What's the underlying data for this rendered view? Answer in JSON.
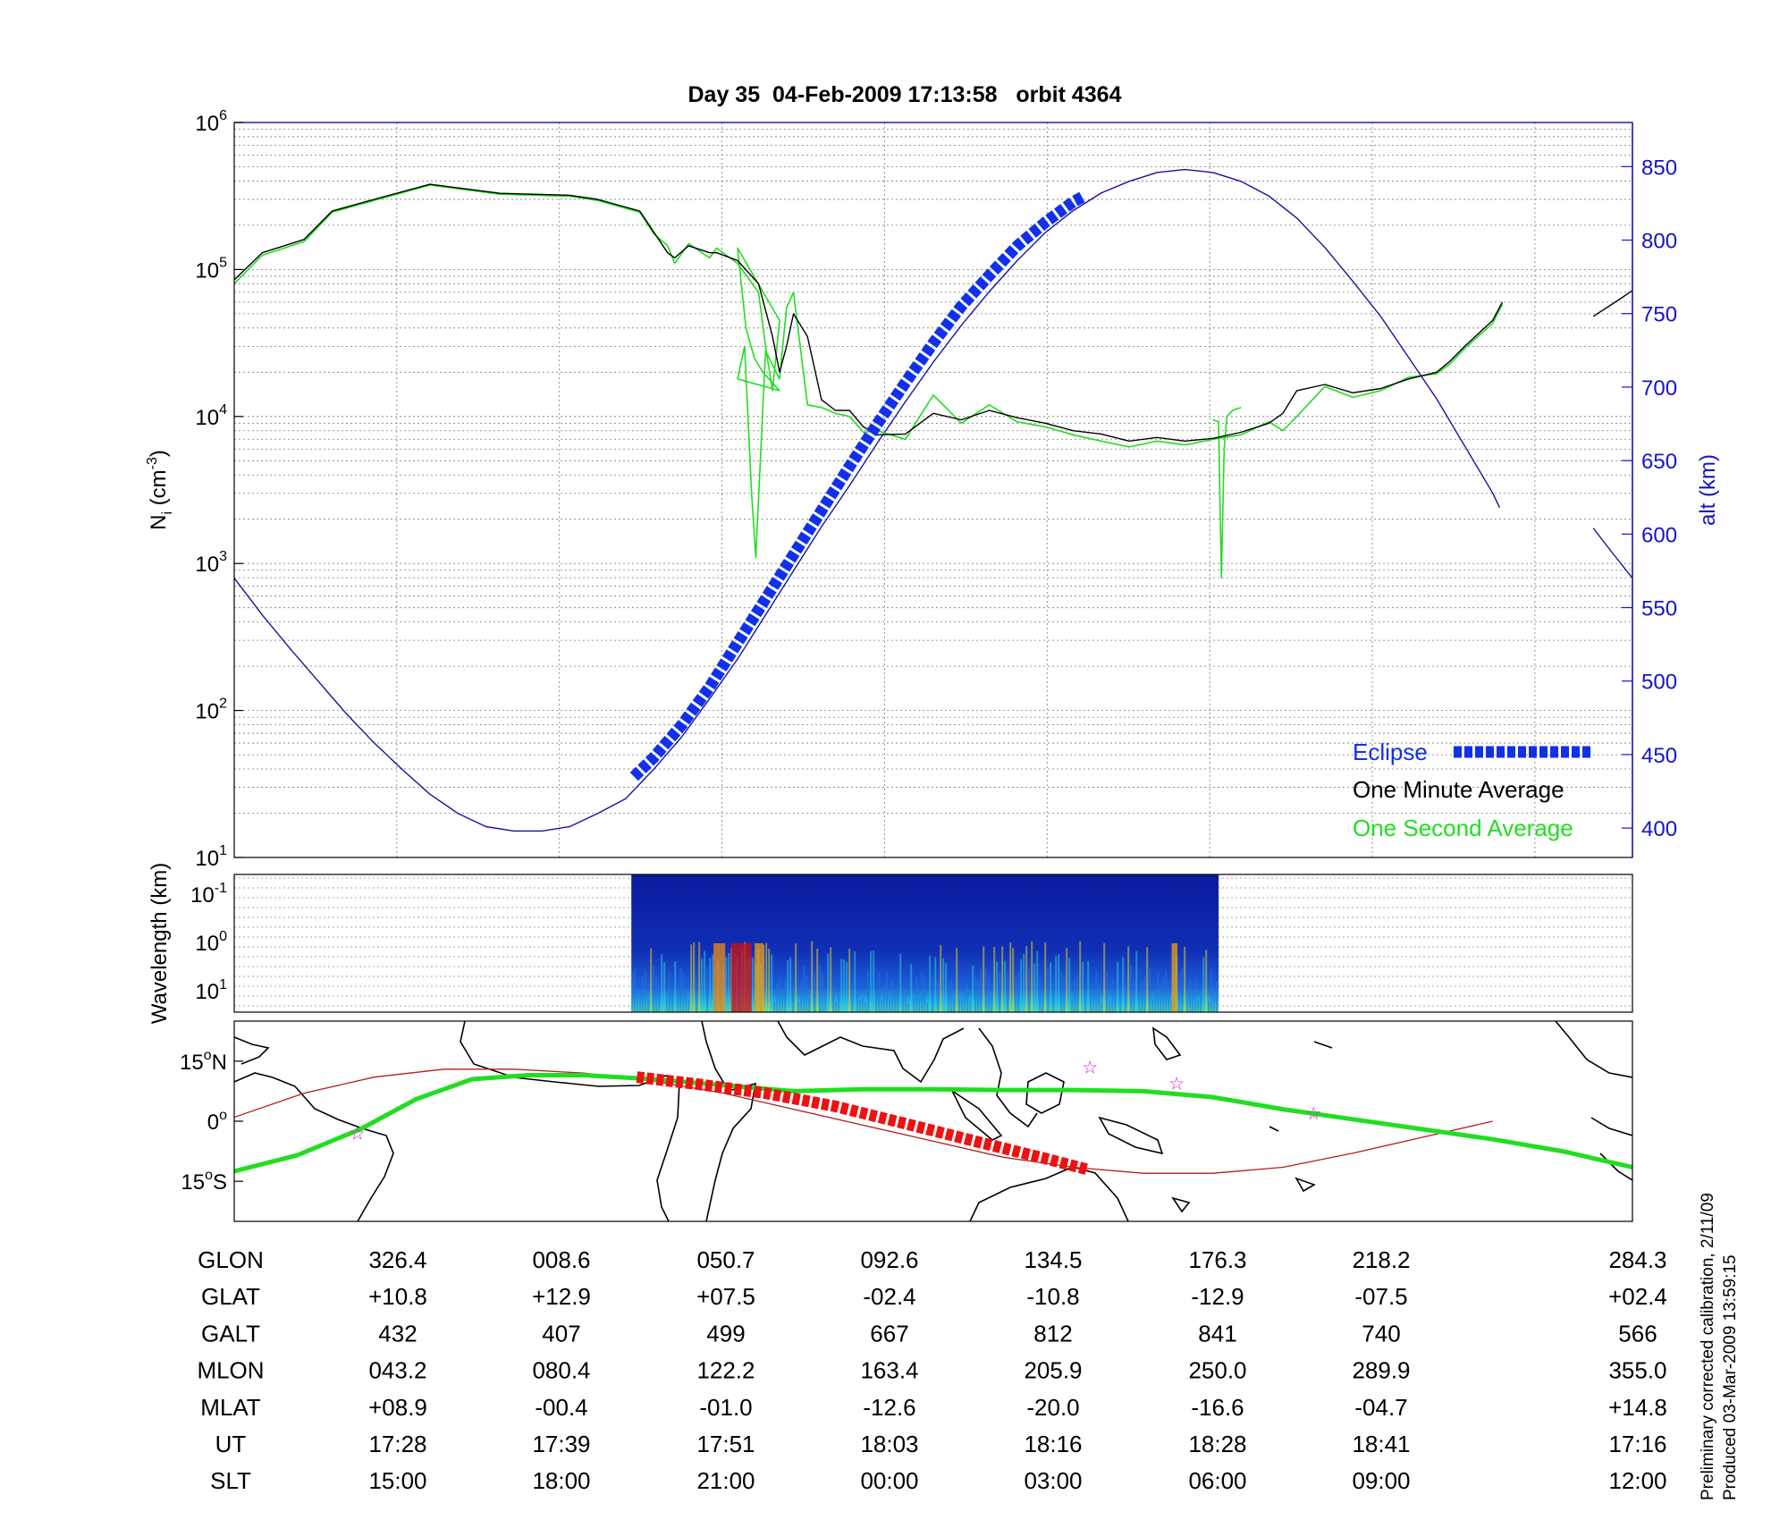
{
  "title": "Day 35  04-Feb-2009 17:13:58   orbit 4364",
  "colors": {
    "density_1s": "#22dd22",
    "density_1m": "#000000",
    "altitude": "#1414a0",
    "eclipse": "#1030ee",
    "map_track": "#22dd22",
    "map_orbit": "#b02020",
    "map_eclipse": "#ee1111",
    "star": "#cc22cc"
  },
  "chart_data": [
    {
      "type": "line",
      "title": "Day 35  04-Feb-2009 17:13:58   orbit 4364",
      "ylabel_left": {
        "base": "N",
        "sub": "i",
        "unit_pre": " (cm",
        "unit_sup": "-3",
        "unit_post": ")"
      },
      "ylabel_right": "alt (km)",
      "yscale_left": "log",
      "ylim_left": [
        10,
        1000000
      ],
      "yticks_left": [
        {
          "base": "10",
          "exp": "1"
        },
        {
          "base": "10",
          "exp": "2"
        },
        {
          "base": "10",
          "exp": "3"
        },
        {
          "base": "10",
          "exp": "4"
        },
        {
          "base": "10",
          "exp": "5"
        },
        {
          "base": "10",
          "exp": "6"
        }
      ],
      "ylim_right": [
        380,
        880
      ],
      "yticks_right": [
        "400",
        "450",
        "500",
        "550",
        "600",
        "650",
        "700",
        "750",
        "800",
        "850"
      ],
      "xlim": [
        0,
        1
      ],
      "grid": true,
      "legend": {
        "position": "bottom-right",
        "items": [
          {
            "label": "Eclipse",
            "color": "#1030ee"
          },
          {
            "label": "One Minute Average",
            "color": "#000000"
          },
          {
            "label": "One Second Average",
            "color": "#22dd22"
          }
        ]
      },
      "series": [
        {
          "name": "One Minute Average",
          "axis": "left",
          "x": [
            0,
            0.02,
            0.05,
            0.07,
            0.1,
            0.14,
            0.19,
            0.24,
            0.26,
            0.29,
            0.3,
            0.31,
            0.315,
            0.325,
            0.34,
            0.345,
            0.36,
            0.375,
            0.385,
            0.39,
            0.395,
            0.4,
            0.41,
            0.42,
            0.43,
            0.44,
            0.45,
            0.46,
            0.48,
            0.5,
            0.52,
            0.54,
            0.56,
            0.58,
            0.6,
            0.62,
            0.64,
            0.66,
            0.68,
            0.7,
            0.72,
            0.74,
            0.75,
            0.76,
            0.78,
            0.8,
            0.82,
            0.84,
            0.86,
            0.87,
            0.88,
            0.9,
            0.907
          ],
          "y": [
            85000,
            130000,
            160000,
            250000,
            300000,
            380000,
            330000,
            320000,
            300000,
            250000,
            180000,
            130000,
            120000,
            145000,
            130000,
            130000,
            115000,
            80000,
            35000,
            20000,
            30000,
            50000,
            35000,
            13000,
            11000,
            11000,
            8500,
            7500,
            7600,
            10500,
            9500,
            11000,
            9800,
            9000,
            8000,
            7600,
            6800,
            7200,
            6800,
            7100,
            7800,
            9000,
            10500,
            15000,
            16500,
            14500,
            15500,
            18000,
            20000,
            24000,
            30000,
            45000,
            60000
          ]
        },
        {
          "name": "One Minute Average",
          "axis": "left",
          "x": [
            0.972,
            0.99,
            1
          ],
          "y": [
            48000,
            62000,
            72000
          ]
        },
        {
          "name": "One Second Average",
          "axis": "left",
          "x": [
            0,
            0.02,
            0.05,
            0.07,
            0.1,
            0.14,
            0.19,
            0.24,
            0.26,
            0.29,
            0.3,
            0.31,
            0.315,
            0.325,
            0.34,
            0.345,
            0.36,
            0.375,
            0.38,
            0.385,
            0.39,
            0.36,
            0.366,
            0.372,
            0.378,
            0.39,
            0.36,
            0.365,
            0.37,
            0.373,
            0.38,
            0.39,
            0.395,
            0.4,
            0.41,
            0.42,
            0.43,
            0.44,
            0.45,
            0.46,
            0.48,
            0.5,
            0.52,
            0.54,
            0.56,
            0.58,
            0.6,
            0.62,
            0.64,
            0.66,
            0.68,
            0.7,
            0.72,
            0.74,
            0.75,
            0.76,
            0.78,
            0.8,
            0.82,
            0.84,
            0.86,
            0.87,
            0.88,
            0.9,
            0.907
          ],
          "y": [
            80000,
            125000,
            155000,
            245000,
            295000,
            375000,
            325000,
            315000,
            295000,
            245000,
            175000,
            145000,
            110000,
            150000,
            120000,
            140000,
            110000,
            70000,
            30000,
            15000,
            45000,
            140000,
            40000,
            25000,
            20000,
            15000,
            18000,
            30000,
            3000,
            1100,
            28000,
            18000,
            55000,
            70000,
            12000,
            11500,
            10500,
            10000,
            7800,
            8000,
            7000,
            14000,
            9000,
            12000,
            9200,
            8500,
            7500,
            6800,
            6200,
            6800,
            6400,
            7000,
            7500,
            9200,
            8000,
            10000,
            16000,
            13500,
            15000,
            18500,
            19500,
            23000,
            29000,
            43000,
            58000
          ]
        },
        {
          "name": "One Second Average",
          "axis": "left",
          "x": [
            0.7,
            0.704,
            0.706,
            0.708,
            0.71,
            0.714,
            0.72
          ],
          "y": [
            9500,
            9200,
            800,
            6000,
            10000,
            11000,
            11500
          ]
        },
        {
          "name": "Altitude",
          "axis": "right",
          "x": [
            0,
            0.02,
            0.04,
            0.06,
            0.08,
            0.1,
            0.12,
            0.14,
            0.16,
            0.18,
            0.2,
            0.22,
            0.24,
            0.26,
            0.28,
            0.3,
            0.32,
            0.34,
            0.36,
            0.38,
            0.4,
            0.42,
            0.44,
            0.46,
            0.48,
            0.5,
            0.52,
            0.54,
            0.56,
            0.58,
            0.6,
            0.62,
            0.64,
            0.66,
            0.68,
            0.7,
            0.72,
            0.74,
            0.76,
            0.78,
            0.8,
            0.82,
            0.84,
            0.86,
            0.88,
            0.9,
            0.905
          ],
          "y": [
            570,
            545,
            522,
            500,
            478,
            458,
            440,
            423,
            410,
            401,
            398,
            398,
            401,
            410,
            420,
            440,
            462,
            488,
            515,
            545,
            575,
            605,
            633,
            662,
            690,
            717,
            742,
            765,
            786,
            805,
            820,
            832,
            840,
            846,
            848,
            846,
            840,
            830,
            815,
            795,
            772,
            748,
            720,
            692,
            660,
            628,
            618
          ]
        },
        {
          "name": "Altitude",
          "axis": "right",
          "x": [
            0.972,
            0.985,
            1
          ],
          "y": [
            604,
            588,
            570
          ]
        },
        {
          "name": "Eclipse",
          "axis": "right",
          "x": [
            0.286,
            0.3,
            0.32,
            0.34,
            0.36,
            0.38,
            0.4,
            0.42,
            0.44,
            0.46,
            0.48,
            0.5,
            0.52,
            0.54,
            0.56,
            0.58,
            0.6,
            0.608
          ],
          "y": [
            435,
            448,
            470,
            496,
            526,
            556,
            586,
            616,
            646,
            675,
            703,
            730,
            755,
            776,
            796,
            812,
            826,
            830
          ]
        }
      ]
    },
    {
      "type": "heatmap",
      "ylabel": "Wavelength (km)",
      "yticks": [
        {
          "base": "10",
          "exp": "-1"
        },
        {
          "base": "10",
          "exp": "0"
        },
        {
          "base": "10",
          "exp": "1"
        }
      ],
      "x_extent": [
        0.284,
        0.704
      ]
    },
    {
      "type": "map",
      "yticks": [
        {
          "deg": "15",
          "dir": "N"
        },
        {
          "deg": "0",
          "dir": ""
        },
        {
          "deg": "15",
          "dir": "S"
        }
      ],
      "ylim": [
        -25,
        25
      ],
      "track": {
        "x": [
          0,
          0.045,
          0.09,
          0.13,
          0.17,
          0.21,
          0.25,
          0.3,
          0.35,
          0.4,
          0.45,
          0.5,
          0.55,
          0.6,
          0.65,
          0.7,
          0.75,
          0.8,
          0.85,
          0.9,
          0.95,
          1
        ],
        "y": [
          -12.5,
          -8.5,
          -2,
          5.5,
          10.5,
          11.5,
          11.5,
          10.5,
          9,
          7.5,
          8,
          8,
          7.8,
          7.8,
          7.5,
          6,
          3,
          0.5,
          -2,
          -4.5,
          -7.5,
          -11.5
        ]
      },
      "orbit": {
        "x": [
          0,
          0.05,
          0.1,
          0.15,
          0.2,
          0.25,
          0.3,
          0.35,
          0.4,
          0.45,
          0.5,
          0.55,
          0.6,
          0.65,
          0.7,
          0.75,
          0.8,
          0.85,
          0.9
        ],
        "y": [
          1,
          7,
          11,
          13,
          13,
          12,
          10,
          7,
          3,
          -1,
          -5,
          -9,
          -11.5,
          -13,
          -13,
          -11.5,
          -8,
          -4,
          0
        ]
      },
      "eclipse": {
        "x": [
          0.288,
          0.33,
          0.38,
          0.43,
          0.48,
          0.53,
          0.58,
          0.61
        ],
        "y": [
          11,
          9.3,
          7,
          3.7,
          -0.6,
          -5,
          -9.3,
          -12
        ]
      },
      "stars": {
        "x": [
          0.088,
          0.612,
          0.674,
          0.772
        ],
        "y": [
          -3,
          13.5,
          9.5,
          2
        ]
      }
    }
  ],
  "table": {
    "rows": [
      {
        "label": "GLON",
        "values": [
          "326.4",
          "008.6",
          "050.7",
          "092.6",
          "134.5",
          "176.3",
          "218.2",
          "284.3"
        ]
      },
      {
        "label": "GLAT",
        "values": [
          "+10.8",
          "+12.9",
          "+07.5",
          "-02.4",
          "-10.8",
          "-12.9",
          "-07.5",
          "+02.4"
        ]
      },
      {
        "label": "GALT",
        "values": [
          "432",
          "407",
          "499",
          "667",
          "812",
          "841",
          "740",
          "566"
        ]
      },
      {
        "label": "MLON",
        "values": [
          "043.2",
          "080.4",
          "122.2",
          "163.4",
          "205.9",
          "250.0",
          "289.9",
          "355.0"
        ]
      },
      {
        "label": "MLAT",
        "values": [
          "+08.9",
          "-00.4",
          "-01.0",
          "-12.6",
          "-20.0",
          "-16.6",
          "-04.7",
          "+14.8"
        ]
      },
      {
        "label": "UT",
        "values": [
          "17:28",
          "17:39",
          "17:51",
          "18:03",
          "18:16",
          "18:28",
          "18:41",
          "17:16"
        ]
      },
      {
        "label": "SLT",
        "values": [
          "15:00",
          "18:00",
          "21:00",
          "00:00",
          "03:00",
          "06:00",
          "09:00",
          "12:00"
        ]
      }
    ]
  },
  "side_notes": [
    "Preliminary corrected calibration, 2/11/09",
    "Produced 03-Mar-2009 13:59:15"
  ]
}
